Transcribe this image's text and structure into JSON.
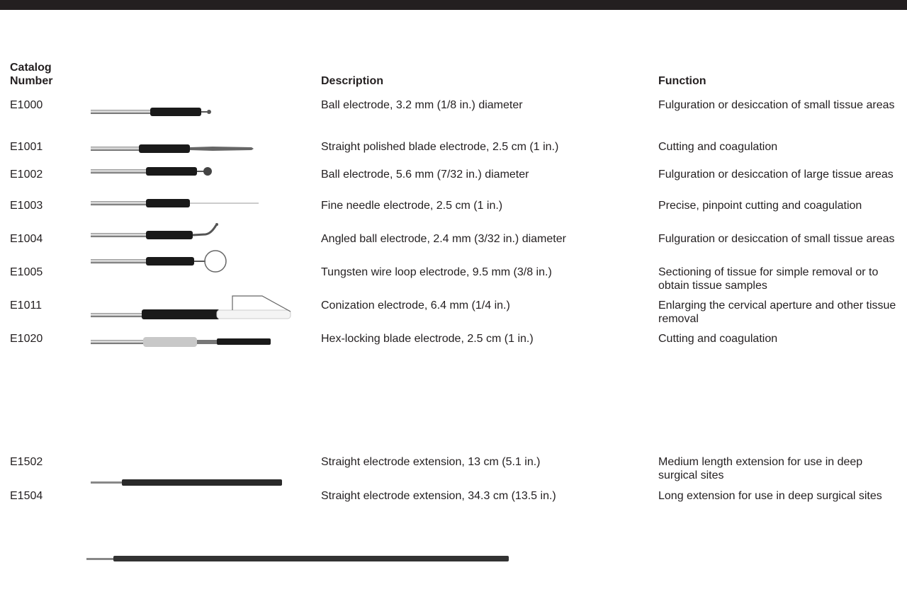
{
  "table": {
    "header": [
      "Catalog Number",
      "Description",
      "Function"
    ],
    "rows": [
      [
        "E1000",
        "Ball electrode, 3.2 mm (1/8 in.) diameter",
        "Fulguration or desiccation of small tissue areas"
      ],
      [
        "E1001",
        "Straight polished blade electrode, 2.5 cm (1 in.)",
        "Cutting and coagulation"
      ],
      [
        "E1002",
        "Ball electrode, 5.6 mm (7/32 in.) diameter",
        "Fulguration or desiccation of large tissue areas"
      ],
      [
        "E1003",
        "Fine needle electrode, 2.5 cm (1 in.)",
        "Precise, pinpoint cutting and coagulation"
      ],
      [
        "E1004",
        "Angled ball electrode, 2.4 mm (3/32 in.) diameter",
        "Fulguration or desiccation of small tissue areas"
      ],
      [
        "E1005",
        "Tungsten wire loop electrode, 9.5 mm (3/8 in.)",
        "Sectioning of tissue for simple removal or to obtain tissue samples"
      ],
      [
        "E1011",
        "Conization electrode, 6.4 mm (1/4 in.)",
        "Enlarging the cervical aperture and other tissue removal"
      ],
      [
        "E1020",
        "Hex-locking blade electrode, 2.5 cm (1 in.)",
        "Cutting and coagulation"
      ],
      [
        "E1502",
        "Straight electrode extension, 13 cm (5.1 in.)",
        "Medium length extension for use in deep surgical sites"
      ],
      [
        "E1504",
        "Straight electrode extension, 34.3 cm (13.5 in.)",
        "Long extension for use in deep surgical sites"
      ]
    ]
  }
}
